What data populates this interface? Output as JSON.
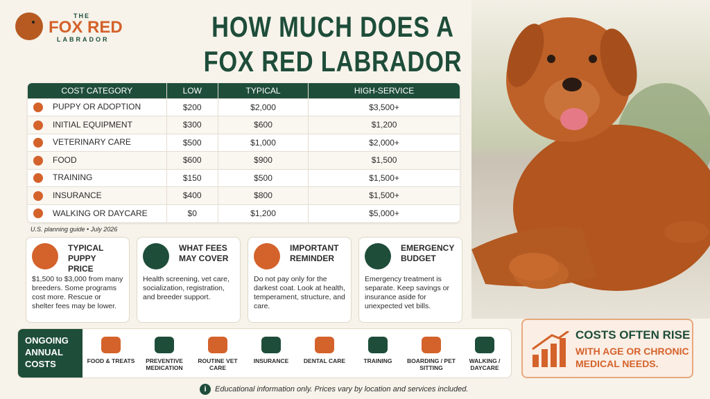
{
  "logo": {
    "top": "THE",
    "name": "FOX RED",
    "sub": "LABRADOR"
  },
  "title": [
    "HOW MUCH DOES A",
    "FOX RED LABRADOR COST?"
  ],
  "table": {
    "header": [
      "COST CATEGORY",
      "LOW",
      "TYPICAL",
      "HIGH-SERVICE"
    ],
    "rows": [
      [
        "PUPPY OR ADOPTION",
        "$200",
        "$2,000",
        "$3,500+"
      ],
      [
        "INITIAL EQUIPMENT",
        "$300",
        "$600",
        "$1,200"
      ],
      [
        "VETERINARY CARE",
        "$500",
        "$1,000",
        "$2,000+"
      ],
      [
        "FOOD",
        "$600",
        "$900",
        "$1,500"
      ],
      [
        "TRAINING",
        "$150",
        "$500",
        "$1,500+"
      ],
      [
        "INSURANCE",
        "$400",
        "$800",
        "$1,500+"
      ],
      [
        "WALKING OR DAYCARE",
        "$0",
        "$1,200",
        "$5,000+"
      ]
    ]
  },
  "note": "U.S. planning guide • July 2026",
  "cards": [
    {
      "title": "TYPICAL PUPPY PRICE",
      "body": "$1,500 to $3,000 from many breeders. Some programs cost more. Rescue or shelter fees may be lower."
    },
    {
      "title": "WHAT FEES MAY COVER",
      "body": "Health screening, vet care, socialization, registration, and breeder support."
    },
    {
      "title": "IMPORTANT REMINDER",
      "body": "Do not pay only for the darkest coat. Look at health, temperament, structure, and care."
    },
    {
      "title": "EMERGENCY BUDGET",
      "body": "Emergency treatment is separate. Keep savings or insurance aside for unexpected vet bills."
    }
  ],
  "ongoing": {
    "label": "ONGOING ANNUAL COSTS",
    "items": [
      "FOOD & TREATS",
      "PREVENTIVE MEDICATION",
      "ROUTINE VET CARE",
      "INSURANCE",
      "DENTAL CARE",
      "TRAINING",
      "BOARDING / PET SITTING",
      "WALKING / DAYCARE"
    ]
  },
  "callout": {
    "title": "COSTS OFTEN RISE",
    "body": "WITH AGE OR CHRONIC MEDICAL NEEDS."
  },
  "footer": "Educational information only. Prices vary by location and services included."
}
